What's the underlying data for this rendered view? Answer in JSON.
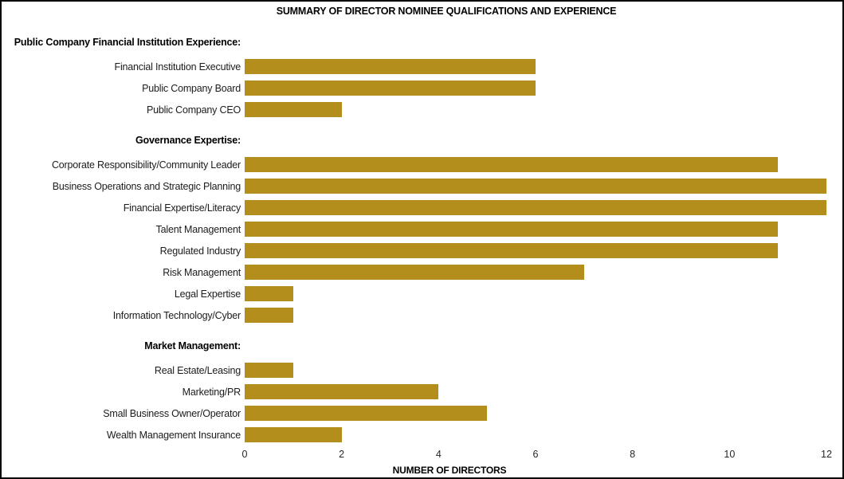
{
  "chart_data": {
    "type": "bar",
    "orientation": "horizontal",
    "title": "SUMMARY OF DIRECTOR NOMINEE QUALIFICATIONS AND EXPERIENCE",
    "xlabel": "NUMBER OF DIRECTORS",
    "xlim": [
      0,
      12
    ],
    "x_ticks": [
      0,
      2,
      4,
      6,
      8,
      10,
      12
    ],
    "bar_color": "#B38E1C",
    "grid": false,
    "legend_position": "none",
    "groups": [
      {
        "header": "Public Company Financial Institution Experience:",
        "items": [
          {
            "label": "Financial Institution Executive",
            "value": 6
          },
          {
            "label": "Public Company Board",
            "value": 6
          },
          {
            "label": "Public Company CEO",
            "value": 2
          }
        ]
      },
      {
        "header": "Governance Expertise:",
        "items": [
          {
            "label": "Corporate Responsibility/Community Leader",
            "value": 11
          },
          {
            "label": "Business Operations and Strategic Planning",
            "value": 12
          },
          {
            "label": "Financial Expertise/Literacy",
            "value": 12
          },
          {
            "label": "Talent Management",
            "value": 11
          },
          {
            "label": "Regulated Industry",
            "value": 11
          },
          {
            "label": "Risk Management",
            "value": 7
          },
          {
            "label": "Legal Expertise",
            "value": 1
          },
          {
            "label": "Information Technology/Cyber",
            "value": 1
          }
        ]
      },
      {
        "header": "Market Management:",
        "items": [
          {
            "label": "Real Estate/Leasing",
            "value": 1
          },
          {
            "label": "Marketing/PR",
            "value": 4
          },
          {
            "label": "Small Business Owner/Operator",
            "value": 5
          },
          {
            "label": "Wealth Management Insurance",
            "value": 2
          }
        ]
      }
    ]
  }
}
